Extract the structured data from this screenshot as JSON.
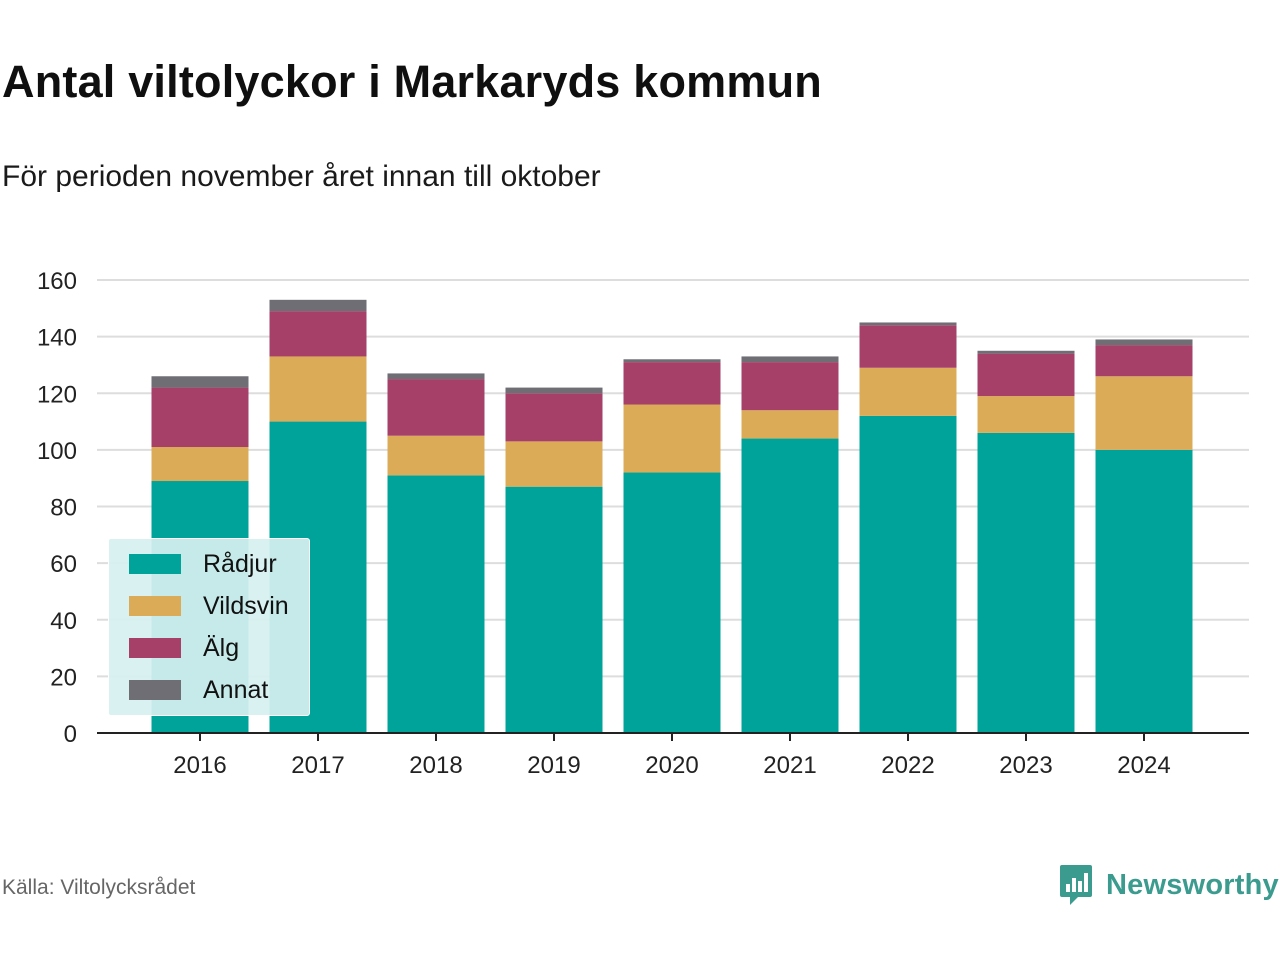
{
  "title": "Antal viltolyckor i Markaryds kommun",
  "subtitle": "För perioden november året innan till oktober",
  "source": "Källa: Viltolycksrådet",
  "brand": "Newsworthy",
  "colors": {
    "radjur": "#00a39a",
    "vildsvin": "#dcab57",
    "alg": "#a64068",
    "annat": "#6e6e74",
    "brand": "#3a9b8e",
    "grid": "#dddddd"
  },
  "chart_data": {
    "type": "bar",
    "stacked": true,
    "categories": [
      "2016",
      "2017",
      "2018",
      "2019",
      "2020",
      "2021",
      "2022",
      "2023",
      "2024"
    ],
    "series": [
      {
        "name": "Rådjur",
        "values": [
          89,
          110,
          91,
          87,
          92,
          104,
          112,
          106,
          100
        ],
        "color": "#00a39a"
      },
      {
        "name": "Vildsvin",
        "values": [
          12,
          23,
          14,
          16,
          24,
          10,
          17,
          13,
          26
        ],
        "color": "#dcab57"
      },
      {
        "name": "Älg",
        "values": [
          21,
          16,
          20,
          17,
          15,
          17,
          15,
          15,
          11
        ],
        "color": "#a64068"
      },
      {
        "name": "Annat",
        "values": [
          4,
          4,
          2,
          2,
          1,
          2,
          1,
          1,
          2
        ],
        "color": "#6e6e74"
      }
    ],
    "yticks": [
      0,
      20,
      40,
      60,
      80,
      100,
      120,
      140,
      160
    ],
    "ylim": [
      0,
      160
    ],
    "grid": true,
    "legend_position": "bottom-left"
  }
}
